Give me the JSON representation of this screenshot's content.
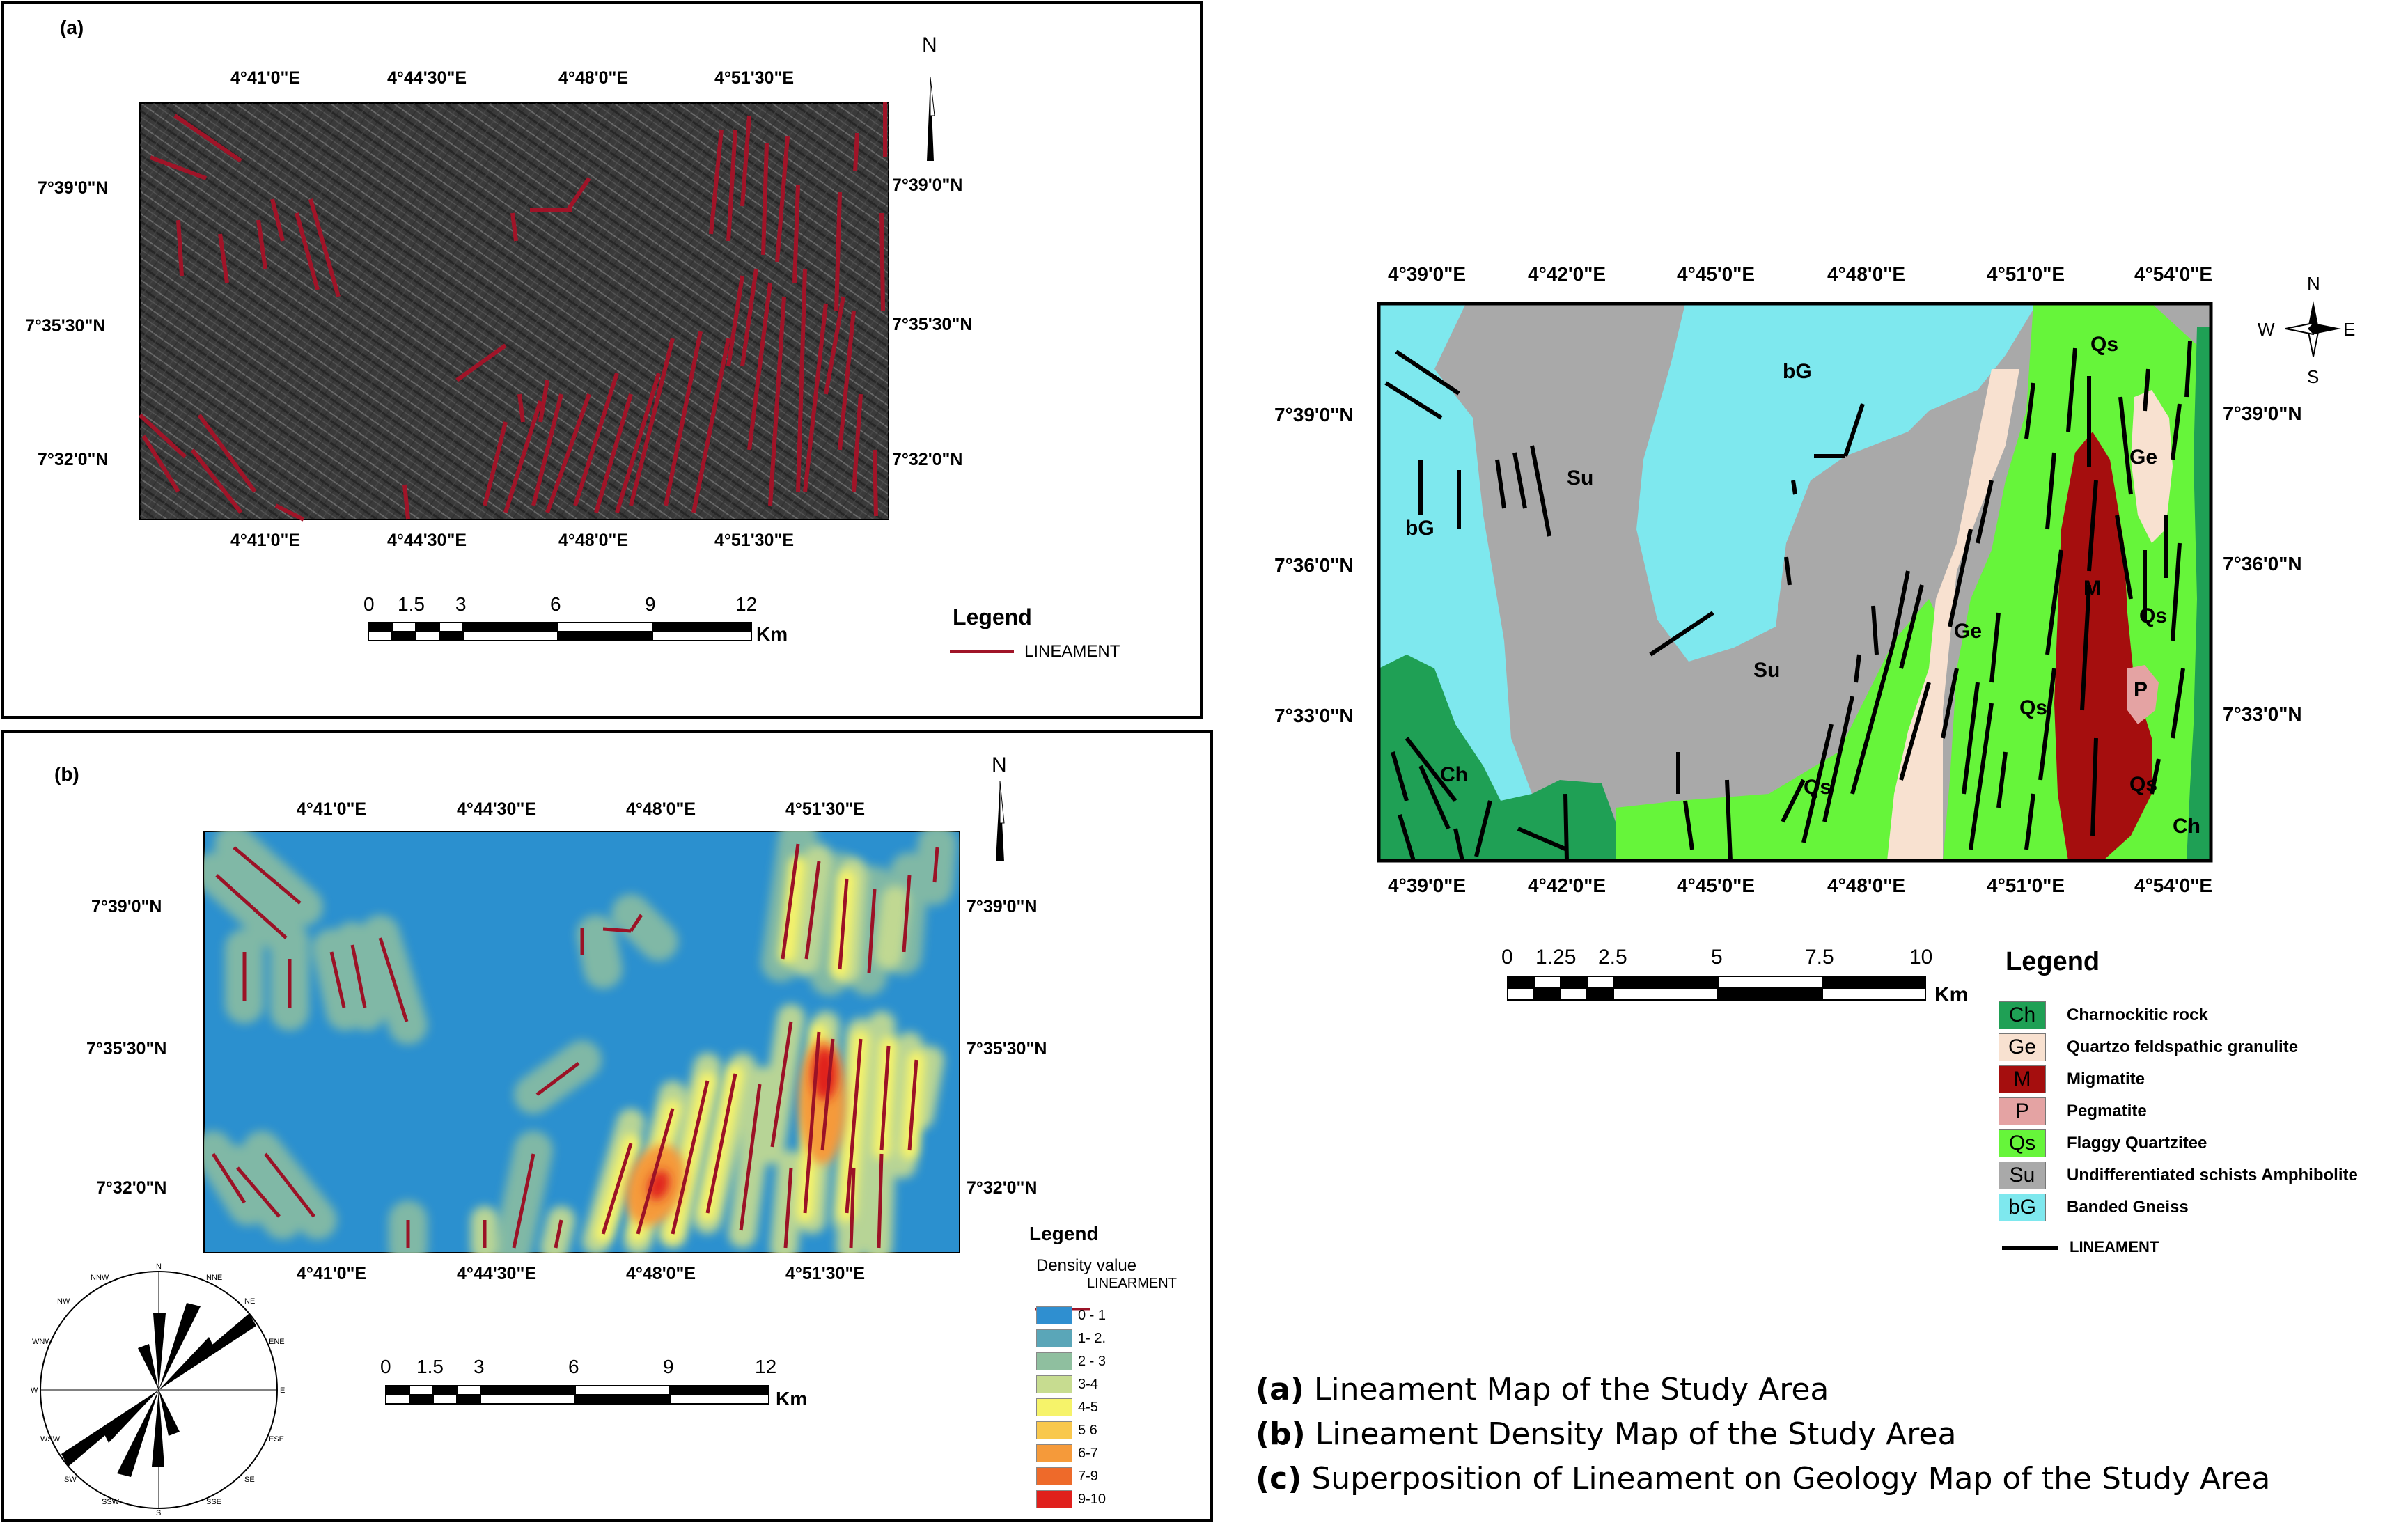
{
  "panel_a": {
    "label": "(a)",
    "top_lon": [
      "4°41'0\"E",
      "4°44'30\"E",
      "4°48'0\"E",
      "4°51'30\"E"
    ],
    "bottom_lon": [
      "4°41'0\"E",
      "4°44'30\"E",
      "4°48'0\"E",
      "4°51'30\"E"
    ],
    "left_lat": [
      "7°39'0\"N",
      "7°35'30\"N",
      "7°32'0\"N"
    ],
    "right_lat": [
      "7°39'0\"N",
      "7°35'30\"N",
      "7°32'0\"N"
    ],
    "north": "N",
    "scale_ticks": [
      "0",
      "1.5",
      "3",
      "6",
      "9",
      "12"
    ],
    "scale_unit": "Km",
    "legend_title": "Legend",
    "legend_item": "LINEAMENT",
    "lineament_color": "#8b1a2b"
  },
  "panel_b": {
    "label": "(b)",
    "top_lon": [
      "4°41'0\"E",
      "4°44'30\"E",
      "4°48'0\"E",
      "4°51'30\"E"
    ],
    "bottom_lon": [
      "4°41'0\"E",
      "4°44'30\"E",
      "4°48'0\"E",
      "4°51'30\"E"
    ],
    "left_lat": [
      "7°39'0\"N",
      "7°35'30\"N",
      "7°32'0\"N"
    ],
    "right_lat": [
      "7°39'0\"N",
      "7°35'30\"N",
      "7°32'0\"N"
    ],
    "north": "N",
    "scale_ticks": [
      "0",
      "1.5",
      "3",
      "6",
      "9",
      "12"
    ],
    "scale_unit": "Km",
    "legend_title": "Legend",
    "density_label": "Density value",
    "lineament_label": "LINEARMENT",
    "density_classes": [
      {
        "label": "0 - 1",
        "color": "#2f8fd0"
      },
      {
        "label": "1- 2.",
        "color": "#5aa6b8"
      },
      {
        "label": "2 - 3",
        "color": "#8fbf9f"
      },
      {
        "label": "3-4",
        "color": "#c7dc90"
      },
      {
        "label": "4-5",
        "color": "#f6f36a"
      },
      {
        "label": "5 6",
        "color": "#f9c84d"
      },
      {
        "label": "6-7",
        "color": "#f59a3a"
      },
      {
        "label": "7-9",
        "color": "#ee6a2a"
      },
      {
        "label": "9-10",
        "color": "#e0201c"
      }
    ],
    "rose_labels": [
      "N",
      "NNE",
      "NE",
      "ENE",
      "E",
      "ESE",
      "SE",
      "SSE",
      "S",
      "SSW",
      "SW",
      "WSW",
      "W",
      "WNW",
      "NW",
      "NNW"
    ]
  },
  "panel_c": {
    "top_lon": [
      "4°39'0\"E",
      "4°42'0\"E",
      "4°45'0\"E",
      "4°48'0\"E",
      "4°51'0\"E",
      "4°54'0\"E"
    ],
    "bottom_lon": [
      "4°39'0\"E",
      "4°42'0\"E",
      "4°45'0\"E",
      "4°48'0\"E",
      "4°51'0\"E",
      "4°54'0\"E"
    ],
    "left_lat": [
      "7°39'0\"N",
      "7°36'0\"N",
      "7°33'0\"N"
    ],
    "right_lat": [
      "7°39'0\"N",
      "7°36'0\"N",
      "7°33'0\"N"
    ],
    "compass": {
      "n": "N",
      "s": "S",
      "e": "E",
      "w": "W"
    },
    "scale_ticks": [
      "0",
      "1.25",
      "2.5",
      "5",
      "7.5",
      "10"
    ],
    "scale_unit": "Km",
    "map_labels": {
      "bG_top": "bG",
      "bG_left": "bG",
      "Su_left": "Su",
      "Su_mid": "Su",
      "Ge_mid": "Ge",
      "Ge_right": "Ge",
      "Qs_top": "Qs",
      "Qs_right": "Qs",
      "Qs_mid": "Qs",
      "Qs_bottom": "Qs",
      "Qs_lower": "Qs",
      "M": "M",
      "P": "P",
      "Ch_left": "Ch",
      "Ch_right": "Ch"
    },
    "legend_title": "Legend",
    "legend": [
      {
        "code": "Ch",
        "text": "Charnockitic rock",
        "color": "#1fa055",
        "code_color": "#000"
      },
      {
        "code": "Ge",
        "text": "Quartzo feldspathic granulite",
        "color": "#f8e1d0",
        "code_color": "#000"
      },
      {
        "code": "M",
        "text": "Migmatite",
        "color": "#a50e0e",
        "code_color": "#000"
      },
      {
        "code": "P",
        "text": "Pegmatite",
        "color": "#e4a3a3",
        "code_color": "#000"
      },
      {
        "code": "Qs",
        "text": "Flaggy Quartzitee",
        "color": "#66f53a",
        "code_color": "#000"
      },
      {
        "code": "Su",
        "text": "Undifferentiated schists Amphibolite",
        "color": "#a9a9a9",
        "code_color": "#000"
      },
      {
        "code": "bG",
        "text": "Banded Gneiss",
        "color": "#7ee8ee",
        "code_color": "#000"
      }
    ],
    "lineament_label": "LINEAMENT"
  },
  "captions": [
    {
      "tag": "(a)",
      "text": "Lineament Map of the Study Area"
    },
    {
      "tag": "(b)",
      "text": "Lineament Density Map of the Study Area"
    },
    {
      "tag": "(c)",
      "text": "Superposition of Lineament on Geology Map of the Study Area"
    }
  ]
}
